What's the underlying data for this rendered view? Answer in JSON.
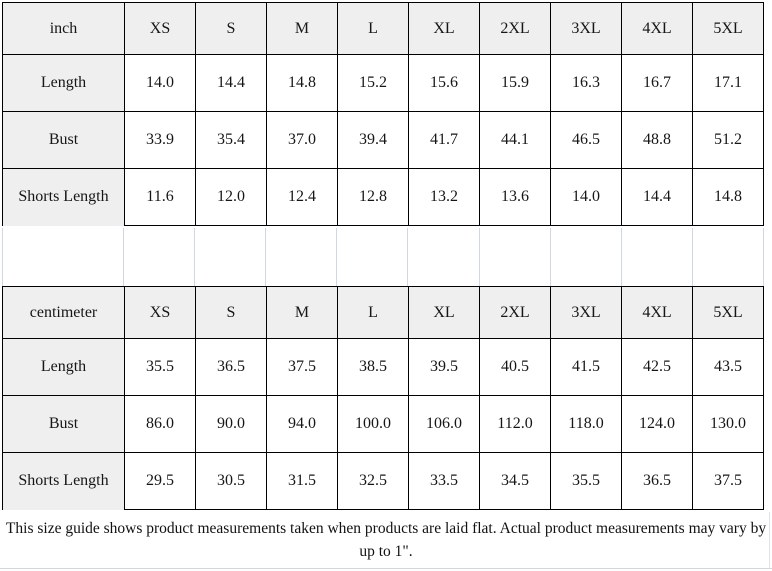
{
  "page": {
    "background": "#ffffff",
    "table_border_color": "#000000",
    "shaded_cell_color": "#efefef",
    "gridline_color": "#cfd8e1"
  },
  "tables": [
    {
      "unit": "inch",
      "sizes": [
        "XS",
        "S",
        "M",
        "L",
        "XL",
        "2XL",
        "3XL",
        "4XL",
        "5XL"
      ],
      "rows": [
        {
          "label": "Length",
          "values": [
            "14.0",
            "14.4",
            "14.8",
            "15.2",
            "15.6",
            "15.9",
            "16.3",
            "16.7",
            "17.1"
          ]
        },
        {
          "label": "Bust",
          "values": [
            "33.9",
            "35.4",
            "37.0",
            "39.4",
            "41.7",
            "44.1",
            "46.5",
            "48.8",
            "51.2"
          ]
        },
        {
          "label": "Shorts Length",
          "values": [
            "11.6",
            "12.0",
            "12.4",
            "12.8",
            "13.2",
            "13.6",
            "14.0",
            "14.4",
            "14.8"
          ]
        }
      ]
    },
    {
      "unit": "centimeter",
      "sizes": [
        "XS",
        "S",
        "M",
        "L",
        "XL",
        "2XL",
        "3XL",
        "4XL",
        "5XL"
      ],
      "rows": [
        {
          "label": "Length",
          "values": [
            "35.5",
            "36.5",
            "37.5",
            "38.5",
            "39.5",
            "40.5",
            "41.5",
            "42.5",
            "43.5"
          ]
        },
        {
          "label": "Bust",
          "values": [
            "86.0",
            "90.0",
            "94.0",
            "100.0",
            "106.0",
            "112.0",
            "118.0",
            "124.0",
            "130.0"
          ]
        },
        {
          "label": "Shorts Length",
          "values": [
            "29.5",
            "30.5",
            "31.5",
            "32.5",
            "33.5",
            "34.5",
            "35.5",
            "36.5",
            "37.5"
          ]
        }
      ]
    }
  ],
  "footer": {
    "note": "This size guide shows product measurements taken when products are laid flat. Actual product measurements may vary by up to 1\"."
  }
}
